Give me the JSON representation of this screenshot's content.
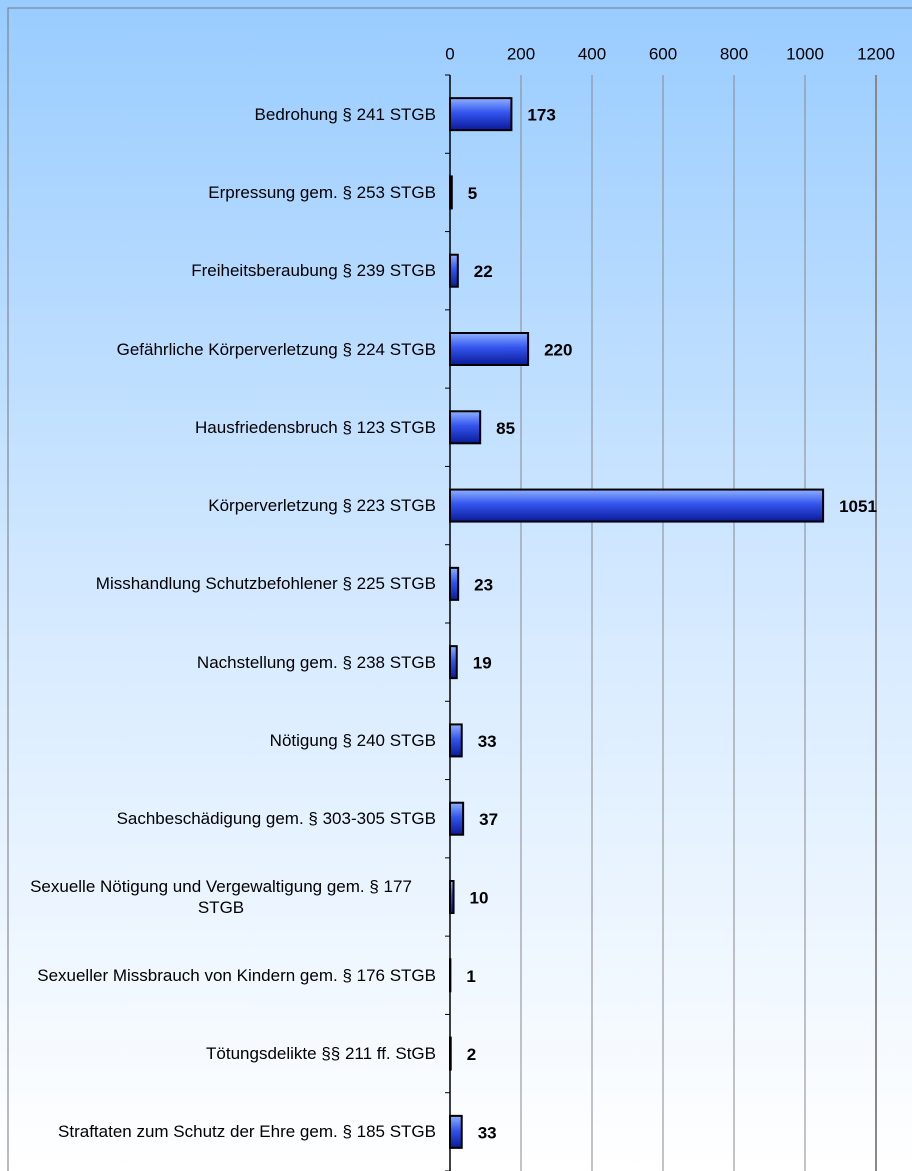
{
  "chart_data": {
    "type": "bar",
    "orientation": "horizontal",
    "categories": [
      "Bedrohung § 241 STGB",
      "Erpressung gem. § 253 STGB",
      "Freiheitsberaubung § 239 STGB",
      "Gefährliche Körperverletzung § 224 STGB",
      "Hausfriedensbruch § 123 STGB",
      "Körperverletzung § 223 STGB",
      "Misshandlung Schutzbefohlener § 225 STGB",
      "Nachstellung gem. § 238 STGB",
      "Nötigung § 240 STGB",
      "Sachbeschädigung gem. § 303-305 STGB",
      "Sexuelle Nötigung und Vergewaltigung gem. § 177  STGB",
      "Sexueller Missbrauch von Kindern gem. § 176 STGB",
      "Tötungsdelikte §§ 211 ff. StGB",
      "Straftaten zum Schutz der Ehre gem. § 185 STGB"
    ],
    "values": [
      173,
      5,
      22,
      220,
      85,
      1051,
      23,
      19,
      33,
      37,
      10,
      1,
      2,
      33
    ],
    "color": "#3355ee",
    "xlim": [
      0,
      1200
    ],
    "xticks": [
      0,
      200,
      400,
      600,
      800,
      1000,
      1200
    ],
    "grid": true
  }
}
